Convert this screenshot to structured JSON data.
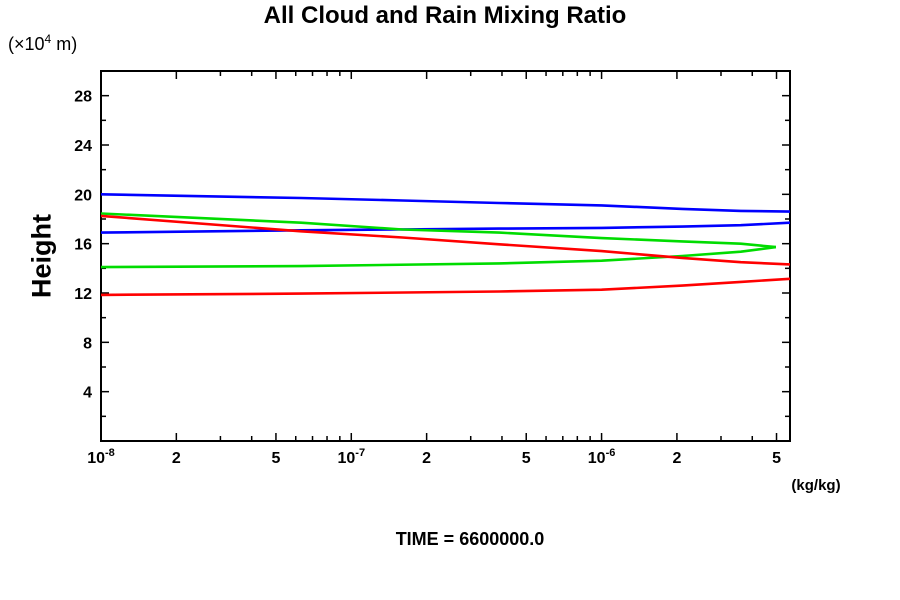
{
  "chart_data": {
    "type": "line",
    "title": "All Cloud and Rain Mixing Ratio",
    "y_axis_title": "Height",
    "y_unit": {
      "prefix": "(×10",
      "sup": "4",
      "suffix": " m)"
    },
    "x_unit": "(kg/kg)",
    "annotation": "TIME = 6600000.0",
    "x_scale": "log",
    "xlim": [
      1e-08,
      5.66e-06
    ],
    "ylim": [
      0,
      30
    ],
    "grid": false,
    "legend": "none",
    "x_ticks_labeled": [
      {
        "v": 1e-08,
        "base": "10",
        "exp": "-8"
      },
      {
        "v": 2e-08,
        "text": "2"
      },
      {
        "v": 5e-08,
        "text": "5"
      },
      {
        "v": 1e-07,
        "base": "10",
        "exp": "-7"
      },
      {
        "v": 2e-07,
        "text": "2"
      },
      {
        "v": 5e-07,
        "text": "5"
      },
      {
        "v": 1e-06,
        "base": "10",
        "exp": "-6"
      },
      {
        "v": 2e-06,
        "text": "2"
      },
      {
        "v": 5e-06,
        "text": "5"
      }
    ],
    "x_ticks_minor": [
      3e-08,
      4e-08,
      6e-08,
      7e-08,
      8e-08,
      9e-08,
      3e-07,
      4e-07,
      6e-07,
      7e-07,
      8e-07,
      9e-07,
      3e-06,
      4e-06
    ],
    "y_ticks_labeled": [
      4,
      8,
      12,
      16,
      20,
      24,
      28
    ],
    "y_ticks_minor": [
      2,
      6,
      10,
      14,
      18,
      22,
      26,
      30
    ],
    "series": [
      {
        "name": "blue-upper",
        "color": "#0000ff",
        "points": [
          [
            1e-08,
            20.0
          ],
          [
            2.5e-08,
            19.85
          ],
          [
            6.3e-08,
            19.7
          ],
          [
            1.6e-07,
            19.5
          ],
          [
            3.9e-07,
            19.3
          ],
          [
            1e-06,
            19.1
          ],
          [
            2.1e-06,
            18.82
          ],
          [
            3.6e-06,
            18.66
          ],
          [
            5.66e-06,
            18.6
          ]
        ]
      },
      {
        "name": "blue-lower",
        "color": "#0000ff",
        "points": [
          [
            1e-08,
            16.9
          ],
          [
            6.3e-08,
            17.08
          ],
          [
            3.9e-07,
            17.22
          ],
          [
            1e-06,
            17.28
          ],
          [
            2.1e-06,
            17.38
          ],
          [
            3.6e-06,
            17.5
          ],
          [
            5.66e-06,
            17.7
          ]
        ]
      },
      {
        "name": "green-upper",
        "color": "#00dc00",
        "points": [
          [
            1e-08,
            18.45
          ],
          [
            6.3e-08,
            17.7
          ],
          [
            1.6e-07,
            17.15
          ],
          [
            3.9e-07,
            16.9
          ],
          [
            1e-06,
            16.45
          ],
          [
            2.1e-06,
            16.18
          ],
          [
            3.6e-06,
            16.0
          ],
          [
            4.97e-06,
            15.72
          ]
        ]
      },
      {
        "name": "green-lower",
        "color": "#00dc00",
        "points": [
          [
            1e-08,
            14.1
          ],
          [
            6.3e-08,
            14.18
          ],
          [
            3.9e-07,
            14.4
          ],
          [
            1e-06,
            14.62
          ],
          [
            2.1e-06,
            15.0
          ],
          [
            3.6e-06,
            15.35
          ],
          [
            4.97e-06,
            15.72
          ]
        ]
      },
      {
        "name": "red-upper",
        "color": "#ff0000",
        "points": [
          [
            1e-08,
            18.25
          ],
          [
            6.3e-08,
            17.0
          ],
          [
            1.6e-07,
            16.5
          ],
          [
            3.9e-07,
            15.95
          ],
          [
            1e-06,
            15.4
          ],
          [
            2.1e-06,
            14.85
          ],
          [
            3.6e-06,
            14.5
          ],
          [
            5.66e-06,
            14.32
          ]
        ]
      },
      {
        "name": "red-lower",
        "color": "#ff0000",
        "points": [
          [
            1e-08,
            11.85
          ],
          [
            6.3e-08,
            11.95
          ],
          [
            3.9e-07,
            12.12
          ],
          [
            1e-06,
            12.27
          ],
          [
            2.1e-06,
            12.6
          ],
          [
            3.6e-06,
            12.9
          ],
          [
            5.66e-06,
            13.15
          ]
        ]
      }
    ]
  }
}
